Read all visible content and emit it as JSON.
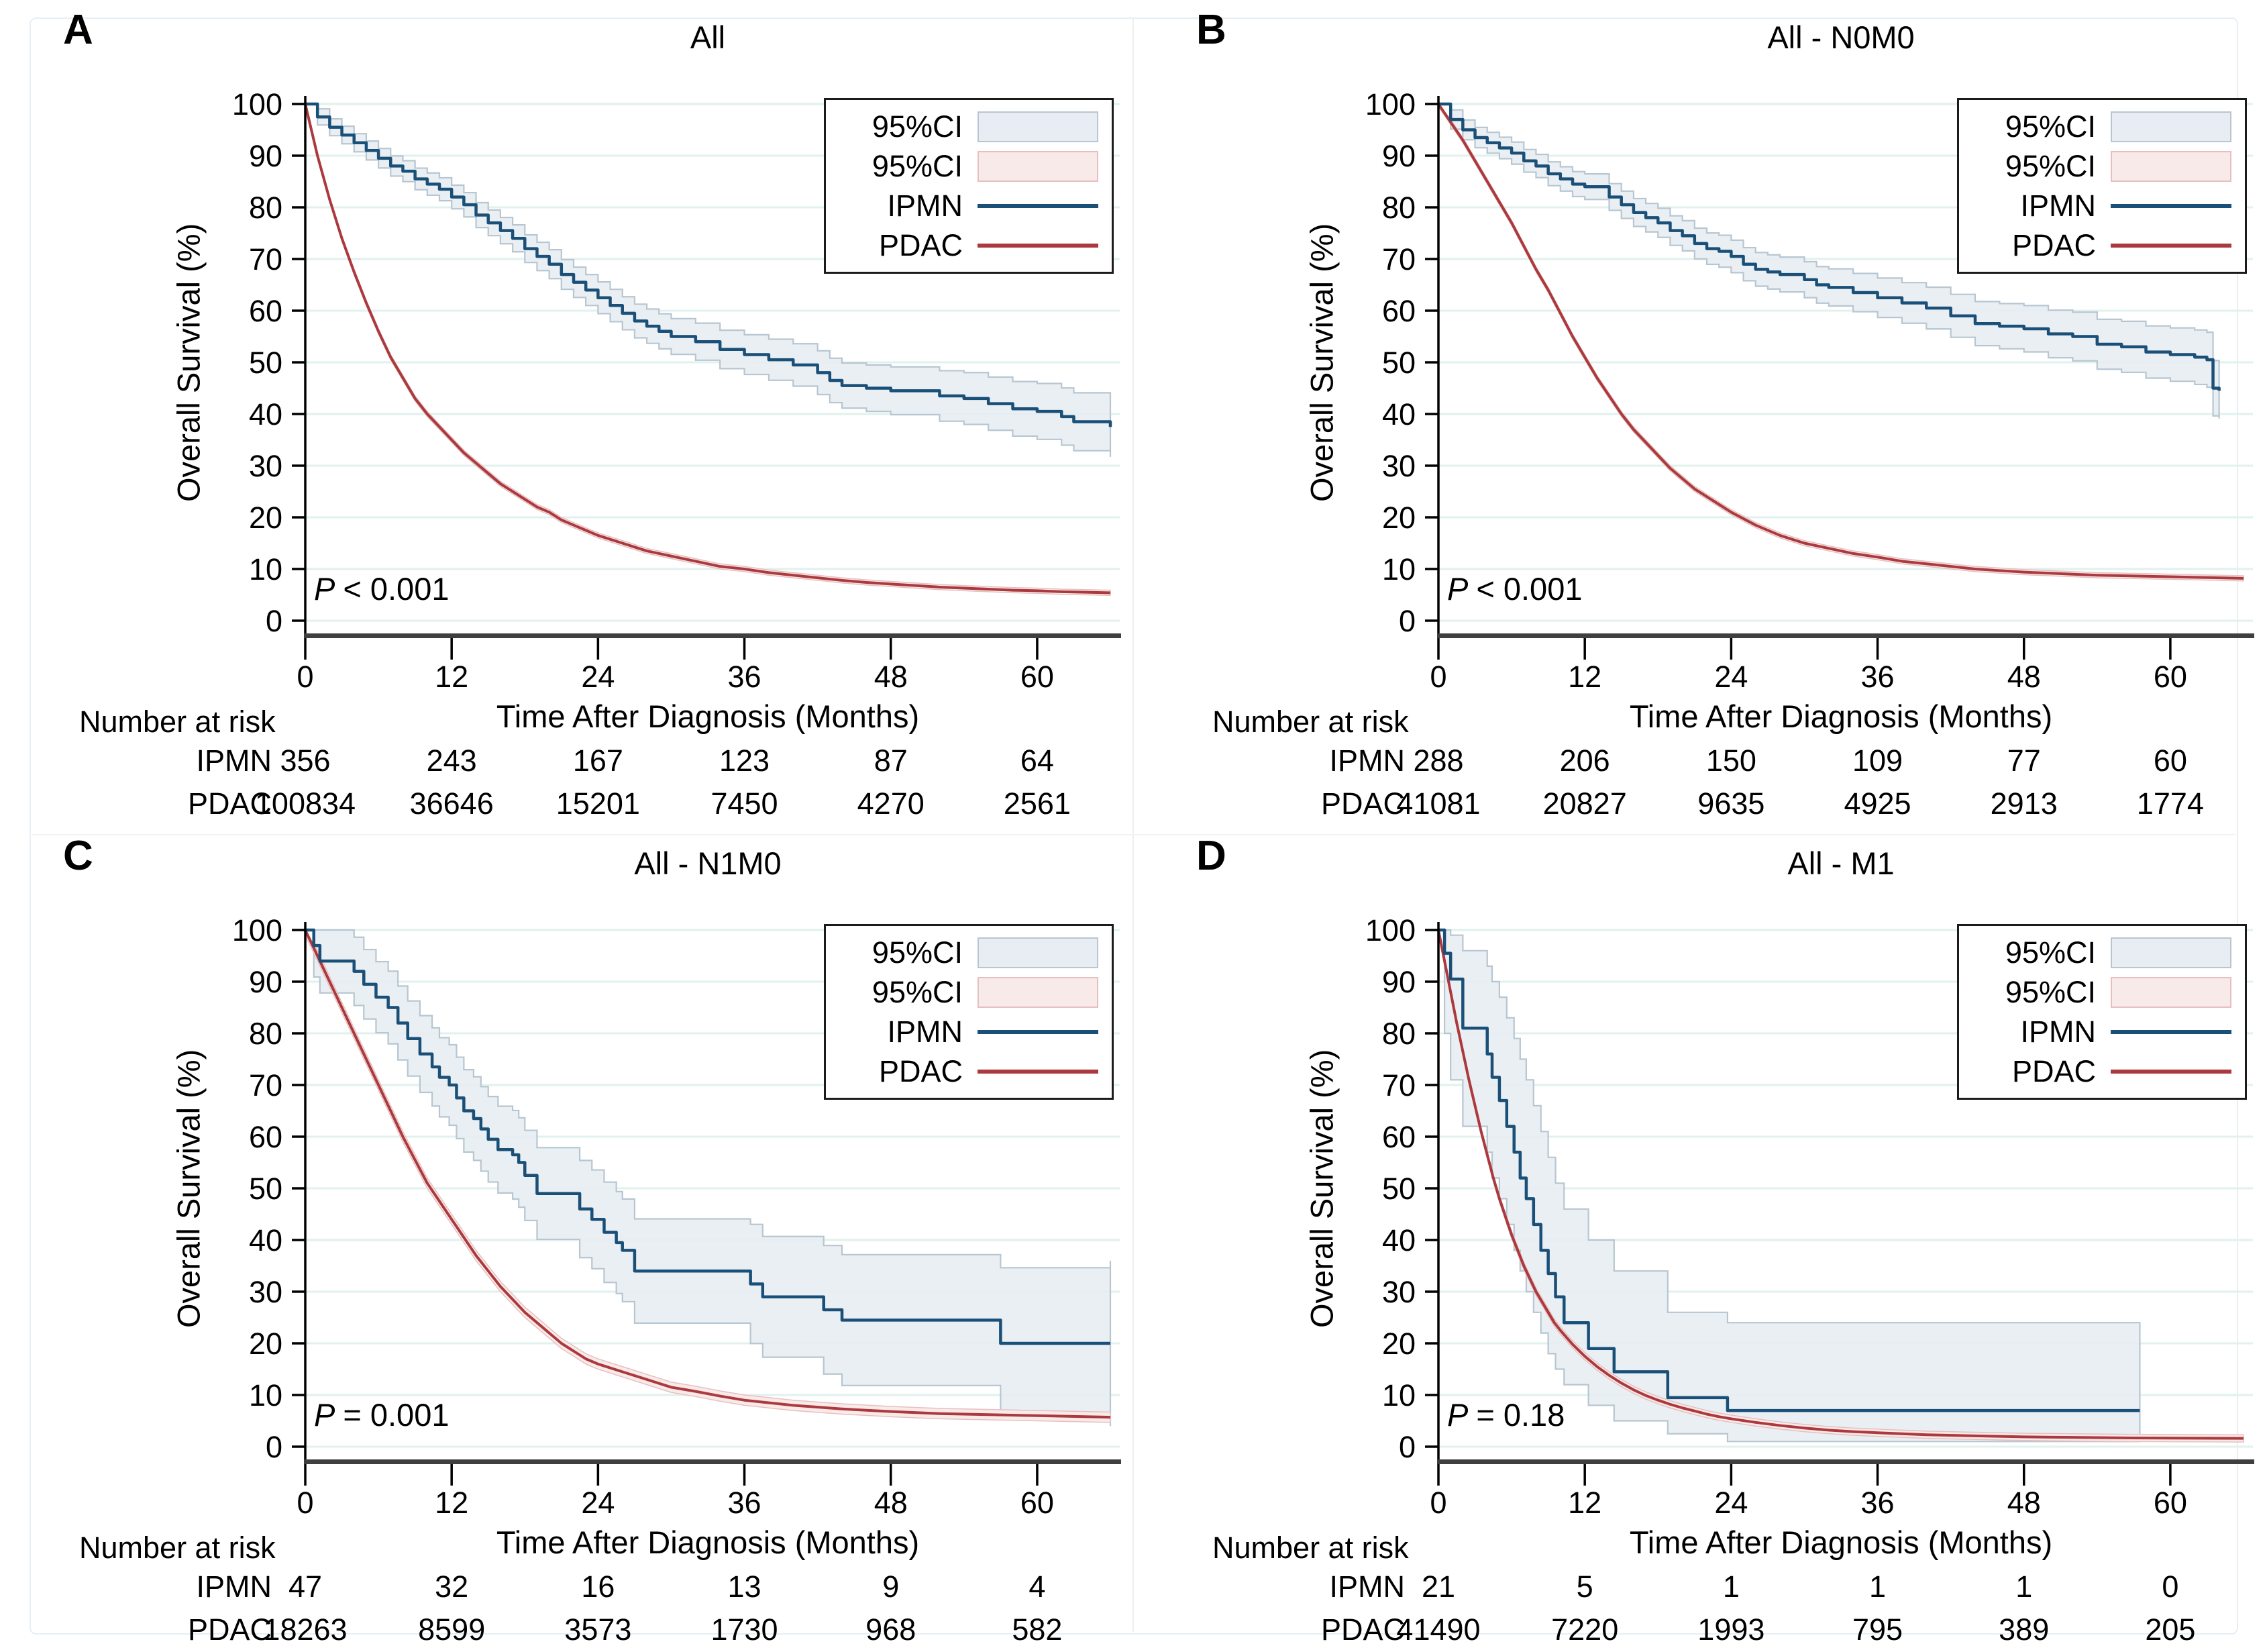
{
  "figure": {
    "ylabel": "Overall Survival (%)",
    "xlabel": "Time After Diagnosis (Months)",
    "at_risk_header": "Number at risk",
    "series": [
      "IPMN",
      "PDAC"
    ],
    "x_ticks": [
      0,
      12,
      24,
      36,
      48,
      60
    ],
    "y_ticks": [
      0,
      10,
      20,
      30,
      40,
      50,
      60,
      70,
      80,
      90,
      100
    ],
    "x_max": 66,
    "legend": [
      {
        "label": "95%CI",
        "type": "fill",
        "fill": "#e7edf2",
        "border": "#b7c6d1"
      },
      {
        "label": "95%CI",
        "type": "fill",
        "fill": "#f9eaea",
        "border": "#e6c0c0"
      },
      {
        "label": "IPMN",
        "type": "line",
        "color": "#1a4f78"
      },
      {
        "label": "PDAC",
        "type": "line",
        "color": "#ab393d"
      }
    ],
    "colors": {
      "ipmn": "#1a4f78",
      "pdac": "#ab393d",
      "ci_ipmn_fill": "#e7edf2",
      "ci_ipmn_edge": "#b7c6d1",
      "ci_pdac_fill": "#f9eaea",
      "ci_pdac_edge": "#e6c0c0",
      "grid": "#e1f1ee",
      "axis": "#000000",
      "baseline": "#3f3f3f"
    }
  },
  "chart_data": {
    "type": "line",
    "description": "Kaplan-Meier overall survival curves with 95% CI bands, IPMN vs PDAC, four subgroup panels",
    "xlim": [
      0,
      66
    ],
    "ylim": [
      0,
      100
    ],
    "panels": [
      {
        "letter": "A",
        "title": "All",
        "p": {
          "label": "P",
          "value": "< 0.001"
        },
        "ipmn": {
          "t": [
            0,
            1,
            2,
            3,
            4,
            5,
            6,
            7,
            8,
            9,
            10,
            11,
            12,
            13,
            14,
            15,
            16,
            17,
            18,
            19,
            20,
            21,
            22,
            23,
            24,
            25,
            26,
            27,
            28,
            29,
            30,
            32,
            34,
            36,
            38,
            40,
            42,
            43,
            44,
            46,
            48,
            52,
            54,
            56,
            58,
            60,
            62,
            63,
            66
          ],
          "s": [
            100,
            97.5,
            95.5,
            94,
            92.5,
            91,
            89.5,
            88,
            87,
            85.5,
            84.5,
            83.5,
            82,
            80.5,
            78.5,
            77,
            75.5,
            74,
            72,
            70.5,
            69,
            67,
            65.5,
            64,
            62.5,
            61,
            59.5,
            58,
            57,
            56,
            55,
            54,
            52.5,
            51.5,
            50.5,
            49.5,
            48,
            46.5,
            45.5,
            45,
            44.5,
            43.5,
            43,
            42,
            41,
            40.5,
            39.5,
            38.5,
            37.5
          ],
          "ci_halfwidth": [
            1.5,
            5.8
          ]
        },
        "pdac": {
          "t": [
            0,
            1,
            2,
            3,
            4,
            5,
            6,
            7,
            8,
            9,
            10,
            11,
            12,
            13,
            14,
            15,
            16,
            17,
            18,
            19,
            20,
            21,
            22,
            23,
            24,
            26,
            28,
            30,
            32,
            34,
            36,
            38,
            40,
            42,
            44,
            46,
            48,
            50,
            52,
            54,
            56,
            58,
            60,
            62,
            64,
            66
          ],
          "s": [
            100,
            90,
            81.5,
            74,
            67.5,
            61.5,
            56,
            51,
            47,
            43,
            40,
            37.5,
            35,
            32.5,
            30.5,
            28.5,
            26.5,
            25,
            23.5,
            22,
            21,
            19.5,
            18.5,
            17.5,
            16.5,
            15,
            13.5,
            12.5,
            11.5,
            10.5,
            10,
            9.3,
            8.8,
            8.3,
            7.8,
            7.4,
            7.1,
            6.8,
            6.5,
            6.3,
            6.1,
            5.9,
            5.8,
            5.6,
            5.5,
            5.4
          ],
          "ci_halfwidth": 0.5
        },
        "at_risk": {
          "rows": [
            {
              "label": "IPMN",
              "counts": [
                356,
                243,
                167,
                123,
                87,
                64
              ]
            },
            {
              "label": "PDAC",
              "counts": [
                100834,
                36646,
                15201,
                7450,
                4270,
                2561
              ]
            }
          ]
        }
      },
      {
        "letter": "B",
        "title": "All - N0M0",
        "p": {
          "label": "P",
          "value": "< 0.001"
        },
        "ipmn": {
          "t": [
            0,
            1,
            2,
            3,
            4,
            5,
            6,
            7,
            8,
            9,
            10,
            11,
            12,
            14,
            15,
            16,
            17,
            18,
            19,
            20,
            21,
            22,
            23,
            24,
            25,
            26,
            27,
            28,
            30,
            31,
            32,
            34,
            36,
            38,
            40,
            42,
            44,
            46,
            48,
            50,
            52,
            54,
            56,
            58,
            60,
            62,
            63,
            63.5,
            64
          ],
          "s": [
            100,
            97,
            95,
            93.5,
            92.5,
            91.5,
            90.5,
            89,
            88,
            86.5,
            85.5,
            84.5,
            84,
            82,
            80.5,
            79,
            78,
            77,
            75.5,
            74.5,
            73,
            72,
            71.5,
            70.5,
            69,
            68,
            67.5,
            67,
            66,
            65,
            64.5,
            63.5,
            62.5,
            61.5,
            60.5,
            59,
            57.5,
            57,
            56.5,
            55.5,
            55,
            53.5,
            53,
            52,
            51.5,
            51,
            50.5,
            45,
            44.5
          ],
          "ci_halfwidth": [
            1.8,
            5.5
          ]
        },
        "pdac": {
          "t": [
            0,
            1,
            2,
            3,
            4,
            5,
            6,
            7,
            8,
            9,
            10,
            11,
            12,
            13,
            14,
            15,
            16,
            17,
            18,
            19,
            20,
            21,
            22,
            23,
            24,
            26,
            28,
            30,
            32,
            34,
            36,
            38,
            40,
            42,
            44,
            46,
            48,
            50,
            52,
            54,
            56,
            58,
            60,
            62,
            64,
            66
          ],
          "s": [
            100,
            96.5,
            93,
            89,
            85,
            81,
            77,
            72.5,
            68,
            64,
            59.5,
            55,
            51,
            47,
            43.5,
            40,
            37,
            34.5,
            32,
            29.5,
            27.5,
            25.5,
            24,
            22.5,
            21,
            18.5,
            16.5,
            15,
            14,
            13,
            12.3,
            11.5,
            11,
            10.5,
            10,
            9.7,
            9.4,
            9.2,
            9,
            8.8,
            8.7,
            8.6,
            8.5,
            8.4,
            8.3,
            8.2
          ],
          "ci_halfwidth": 0.5
        },
        "at_risk": {
          "rows": [
            {
              "label": "IPMN",
              "counts": [
                288,
                206,
                150,
                109,
                77,
                60
              ]
            },
            {
              "label": "PDAC",
              "counts": [
                41081,
                20827,
                9635,
                4925,
                2913,
                1774
              ]
            }
          ]
        }
      },
      {
        "letter": "C",
        "title": "All - N1M0",
        "p": {
          "label": "P",
          "value": "= 0.001"
        },
        "ipmn": {
          "t": [
            0,
            0.7,
            1.2,
            4,
            4.8,
            5.8,
            6.8,
            7.6,
            8.4,
            9.4,
            10.4,
            11,
            11.8,
            12.4,
            13,
            13.8,
            14.4,
            15,
            15.8,
            17,
            17.5,
            18,
            19,
            22.5,
            23.5,
            24.5,
            25.5,
            26,
            27,
            36.5,
            37.5,
            42.5,
            44,
            57,
            66
          ],
          "s": [
            100,
            97,
            94,
            92,
            89.5,
            87,
            85,
            82,
            79,
            76,
            73.5,
            71.5,
            70,
            67.5,
            65,
            63.5,
            61.5,
            59.5,
            57.5,
            56.5,
            55,
            52.5,
            49,
            46,
            44,
            41.5,
            39.5,
            38,
            34,
            31.5,
            29,
            26.5,
            24.5,
            20,
            20
          ],
          "ci_halfwidth": [
            6,
            16
          ]
        },
        "pdac": {
          "t": [
            0,
            1,
            2,
            3,
            4,
            5,
            6,
            7,
            8,
            9,
            10,
            11,
            12,
            13,
            14,
            15,
            16,
            17,
            18,
            19,
            20,
            21,
            22,
            23,
            24,
            26,
            28,
            30,
            32,
            34,
            36,
            40,
            44,
            48,
            52,
            56,
            60,
            66
          ],
          "s": [
            100,
            95,
            90,
            85,
            80,
            75,
            70,
            65,
            60,
            55.5,
            51,
            47.5,
            44,
            40.5,
            37,
            34,
            31,
            28.5,
            26,
            24,
            22,
            20,
            18.5,
            17,
            16,
            14.5,
            13,
            11.5,
            10.7,
            9.8,
            9,
            8,
            7.3,
            6.8,
            6.4,
            6.2,
            6,
            5.7
          ],
          "ci_halfwidth": 1.0
        },
        "at_risk": {
          "rows": [
            {
              "label": "IPMN",
              "counts": [
                47,
                32,
                16,
                13,
                9,
                4
              ]
            },
            {
              "label": "PDAC",
              "counts": [
                18263,
                8599,
                3573,
                1730,
                968,
                582
              ]
            }
          ]
        }
      },
      {
        "letter": "D",
        "title": "All - M1",
        "p": {
          "label": "P",
          "value": "= 0.18"
        },
        "ipmn": {
          "t": [
            0,
            0.5,
            1,
            2,
            4,
            4.4,
            5,
            5.6,
            6.2,
            6.7,
            7.2,
            7.8,
            8.4,
            9,
            9.6,
            10.3,
            12.3,
            14.4,
            18.8,
            23.7,
            57.5
          ],
          "s": [
            100,
            95.5,
            90.5,
            81,
            76,
            71.5,
            67,
            62,
            57,
            52,
            48,
            43,
            38,
            33.5,
            29,
            24,
            19,
            14.5,
            9.5,
            7,
            7
          ],
          "hi": [
            100,
            100,
            99,
            96,
            93,
            90,
            87,
            83,
            79,
            75,
            71,
            66,
            61,
            56,
            51,
            46,
            40,
            34,
            26,
            24,
            24
          ],
          "lo": [
            100,
            80,
            71,
            62,
            57,
            52,
            48,
            43,
            38,
            34,
            30,
            26,
            22,
            18,
            15,
            12,
            8,
            5,
            2.5,
            1,
            1
          ]
        },
        "pdac": {
          "t": [
            0,
            0.5,
            1,
            1.5,
            2,
            2.5,
            3,
            3.5,
            4,
            4.5,
            5,
            5.5,
            6,
            6.5,
            7,
            7.5,
            8,
            8.5,
            9,
            9.5,
            10,
            11,
            12,
            13,
            14,
            15,
            16,
            17,
            18,
            19,
            20,
            21,
            22,
            23,
            24,
            26,
            28,
            30,
            32,
            34,
            36,
            40,
            44,
            48,
            52,
            56,
            60,
            66
          ],
          "s": [
            100,
            94,
            88,
            82,
            76.5,
            71,
            66,
            61,
            56.5,
            52,
            48,
            44.5,
            41,
            38,
            35,
            32.5,
            30,
            28,
            26,
            24,
            22.5,
            19.8,
            17.5,
            15.5,
            13.8,
            12.3,
            11,
            9.9,
            9,
            8.2,
            7.5,
            6.9,
            6.3,
            5.8,
            5.4,
            4.7,
            4.1,
            3.6,
            3.2,
            2.9,
            2.7,
            2.3,
            2.1,
            1.9,
            1.8,
            1.7,
            1.65,
            1.6
          ],
          "ci_halfwidth": 0.7
        },
        "at_risk": {
          "rows": [
            {
              "label": "IPMN",
              "counts": [
                21,
                5,
                1,
                1,
                1,
                0
              ]
            },
            {
              "label": "PDAC",
              "counts": [
                41490,
                7220,
                1993,
                795,
                389,
                205
              ]
            }
          ]
        }
      }
    ]
  }
}
